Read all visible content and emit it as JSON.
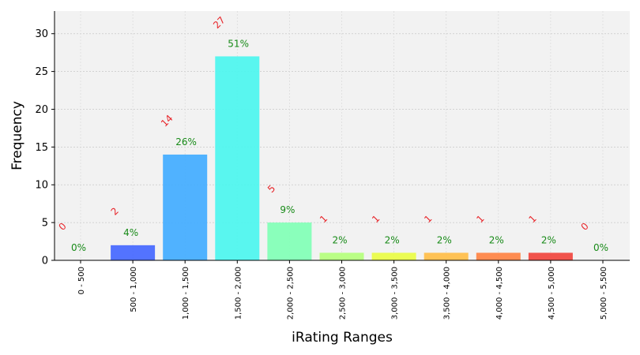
{
  "chart_data": {
    "type": "bar",
    "title": "",
    "xlabel": "iRating Ranges",
    "ylabel": "Frequency",
    "categories": [
      "0 - 500",
      "500 - 1,000",
      "1,000 - 1,500",
      "1,500 - 2,000",
      "2,000 - 2,500",
      "2,500 - 3,000",
      "3,000 - 3,500",
      "3,500 - 4,000",
      "4,000 - 4,500",
      "4,500 - 5,000",
      "5,000 - 5,500"
    ],
    "values": [
      0,
      2,
      14,
      27,
      5,
      1,
      1,
      1,
      1,
      1,
      0
    ],
    "count_labels": [
      "0",
      "2",
      "14",
      "27",
      "5",
      "1",
      "1",
      "1",
      "1",
      "1",
      "0"
    ],
    "percent_labels": [
      "0%",
      "4%",
      "26%",
      "51%",
      "9%",
      "2%",
      "2%",
      "2%",
      "2%",
      "2%",
      "0%"
    ],
    "colors": [
      "#3d2bff",
      "#4a6cff",
      "#47aeff",
      "#50f5ee",
      "#84ffb7",
      "#b6ff7e",
      "#eafc4a",
      "#ffbf4c",
      "#ff8648",
      "#f04a42",
      "#c0181e"
    ],
    "yticks": [
      0,
      5,
      10,
      15,
      20,
      25,
      30
    ],
    "ylim": [
      0,
      33
    ],
    "grid": true,
    "background": "#f2f2f2"
  }
}
